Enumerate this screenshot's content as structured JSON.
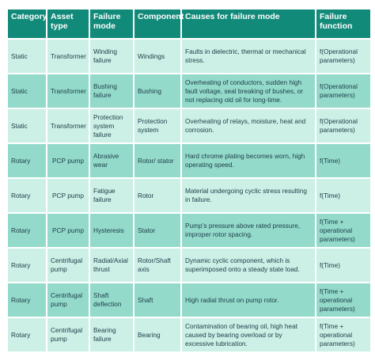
{
  "colors": {
    "header_bg": "#128a7a",
    "row_light": "#ccefe6",
    "row_dark": "#93dacb",
    "text": "#1c3c46"
  },
  "table": {
    "headers": [
      "Category",
      "Asset type",
      "Failure mode",
      "Component",
      "Causes for failure mode",
      "Failure function"
    ],
    "rows": [
      {
        "category": "Static",
        "asset_type": "Transformer",
        "failure_mode": "Winding failure",
        "component": "Windings",
        "causes": "Faults in dielectric, thermal or mechanical stress.",
        "function": "f(Operational parameters)"
      },
      {
        "category": "Static",
        "asset_type": "Transformer",
        "failure_mode": "Bushing failure",
        "component": "Bushing",
        "causes": "Overheating of conductors, sudden high fault voltage, seal breaking of bushes, or not replacing old oil for long-time.",
        "function": "f(Operational parameters)"
      },
      {
        "category": "Static",
        "asset_type": "Transformer",
        "failure_mode": "Protection system failure",
        "component": "Protection system",
        "causes": "Overheating of relays, moisture, heat and corrosion.",
        "function": "f(Operational parameters)"
      },
      {
        "category": "Rotary",
        "asset_type": "PCP pump",
        "failure_mode": "Abrasive wear",
        "component": "Rotor/ stator",
        "causes": "Hard chrome plating becomes worn, high operating speed.",
        "function": "f(Time)"
      },
      {
        "category": "Rotary",
        "asset_type": "PCP pump",
        "failure_mode": "Fatigue failure",
        "component": "Rotor",
        "causes": "Material undergoing cyclic stress resulting in failure.",
        "function": "f(Time)"
      },
      {
        "category": "Rotary",
        "asset_type": "PCP pump",
        "failure_mode": "Hysteresis",
        "component": "Stator",
        "causes": "Pump’s pressure above rated pressure, improper rotor spacing.",
        "function": "f(Time + operational parameters)"
      },
      {
        "category": "Rotary",
        "asset_type": "Centrifugal pump",
        "failure_mode": "Radial/Axial thrust",
        "component": "Rotor/Shaft axis",
        "causes": "Dynamic cyclic component, which is superimposed onto a steady state load.",
        "function": "f(Time)"
      },
      {
        "category": "Rotary",
        "asset_type": "Centrifugal pump",
        "failure_mode": "Shaft deflection",
        "component": "Shaft",
        "causes": "High radial thrust on pump rotor.",
        "function": "f(Time + operational parameters)"
      },
      {
        "category": "Rotary",
        "asset_type": "Centrifugal pump",
        "failure_mode": "Bearing failure",
        "component": "Bearing",
        "causes": "Contamination of bearing oil, high heat caused by bearing overload or by excessive lubrication.",
        "function": "f(Time + operational parameters)"
      }
    ]
  }
}
